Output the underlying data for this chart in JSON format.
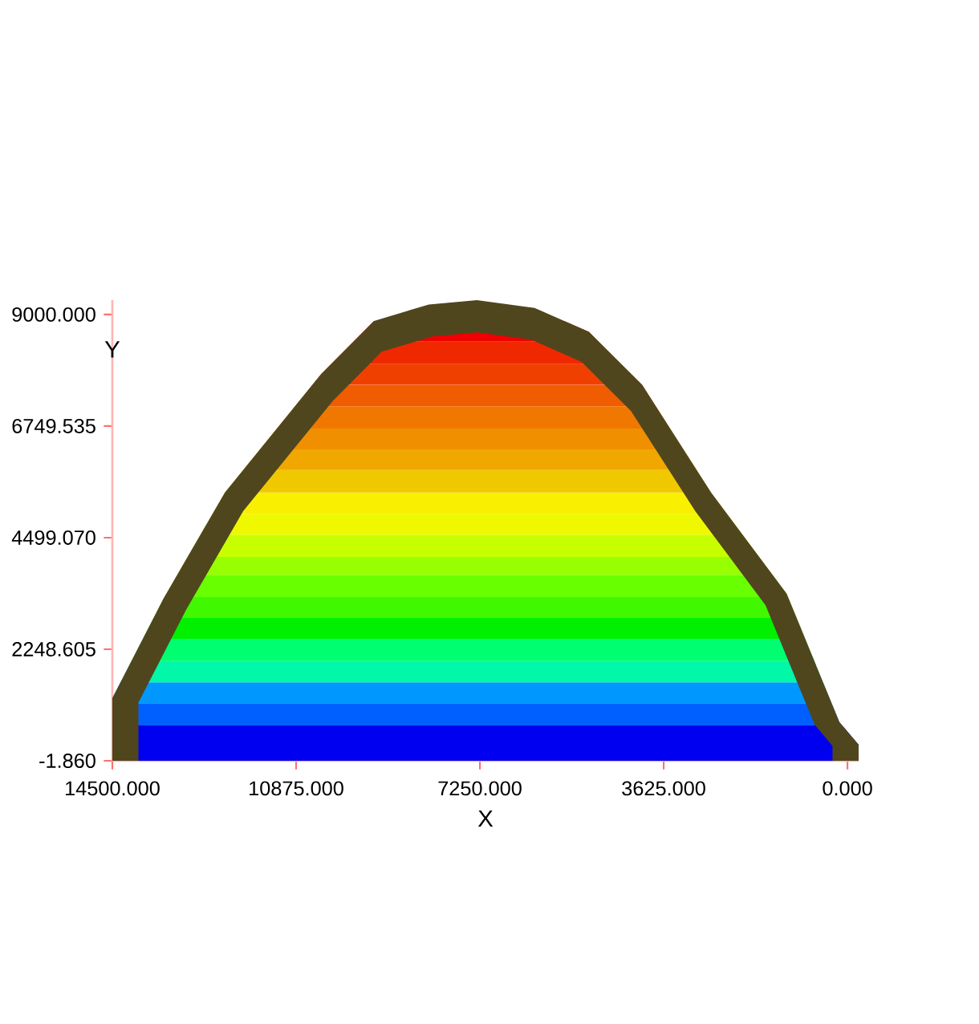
{
  "chart_data": {
    "type": "area",
    "xlabel": "X",
    "ylabel": "Y",
    "x": [
      14500,
      13490,
      12280,
      10380,
      9340,
      8260,
      7310,
      6170,
      5100,
      4050,
      2690,
      1200,
      160,
      -220
    ],
    "values": [
      1260,
      3270,
      5410,
      7800,
      8870,
      9200,
      9290,
      9130,
      8650,
      7580,
      5410,
      3370,
      780,
      320
    ],
    "color": "#50461e",
    "xlim": [
      14500,
      -220
    ],
    "ylim": [
      -1.86,
      9290
    ],
    "xticks": [
      {
        "value": 14500,
        "label": "14500.000"
      },
      {
        "value": 10875,
        "label": "10875.000"
      },
      {
        "value": 7250,
        "label": "7250.000"
      },
      {
        "value": 3625,
        "label": "3625.000"
      },
      {
        "value": 0,
        "label": "0.000"
      }
    ],
    "yticks": [
      {
        "value": -1.86,
        "label": "-1.860"
      },
      {
        "value": 2248.605,
        "label": "2248.605"
      },
      {
        "value": 4499.07,
        "label": "4499.070"
      },
      {
        "value": 6749.535,
        "label": "6749.535"
      },
      {
        "value": 9000,
        "label": "9000.000"
      }
    ],
    "bands": [
      {
        "axis": "y",
        "from": -1.86,
        "to": 710,
        "color": "#0000f0"
      },
      {
        "axis": "y",
        "from": 710,
        "to": 1160,
        "color": "#0060ff"
      },
      {
        "axis": "y",
        "from": 1160,
        "to": 1580,
        "color": "#0098ff"
      },
      {
        "axis": "y",
        "from": 1580,
        "to": 2010,
        "color": "#00f8a8"
      },
      {
        "axis": "y",
        "from": 2010,
        "to": 2460,
        "color": "#00ff70"
      },
      {
        "axis": "y",
        "from": 2460,
        "to": 2880,
        "color": "#00f000"
      },
      {
        "axis": "y",
        "from": 2880,
        "to": 3300,
        "color": "#40f800"
      },
      {
        "axis": "y",
        "from": 3300,
        "to": 3750,
        "color": "#68ff00"
      },
      {
        "axis": "y",
        "from": 3750,
        "to": 4110,
        "color": "#98ff00"
      },
      {
        "axis": "y",
        "from": 4110,
        "to": 4560,
        "color": "#c8ff00"
      },
      {
        "axis": "y",
        "from": 4560,
        "to": 4980,
        "color": "#f0f800"
      },
      {
        "axis": "y",
        "from": 4980,
        "to": 5410,
        "color": "#f8f000"
      },
      {
        "axis": "y",
        "from": 5410,
        "to": 5860,
        "color": "#f0c800"
      },
      {
        "axis": "y",
        "from": 5860,
        "to": 6280,
        "color": "#f0a800"
      },
      {
        "axis": "y",
        "from": 6280,
        "to": 6700,
        "color": "#f09000"
      },
      {
        "axis": "y",
        "from": 6700,
        "to": 7150,
        "color": "#f07800"
      },
      {
        "axis": "y",
        "from": 7150,
        "to": 7580,
        "color": "#f05c00"
      },
      {
        "axis": "y",
        "from": 7580,
        "to": 8000,
        "color": "#f04000"
      },
      {
        "axis": "y",
        "from": 8000,
        "to": 8450,
        "color": "#f02800"
      },
      {
        "axis": "y",
        "from": 8450,
        "to": 8870,
        "color": "#f00000"
      }
    ]
  }
}
